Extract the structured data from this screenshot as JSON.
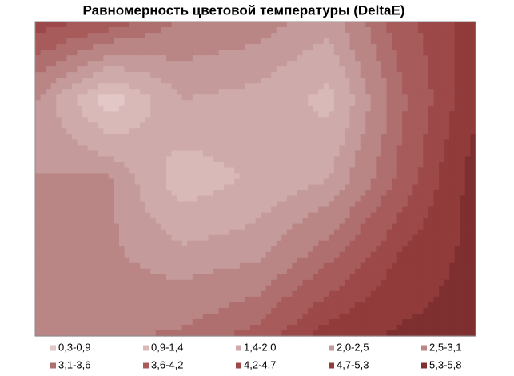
{
  "chart_data": {
    "type": "contour",
    "title": "Равномерность цветовой температуры (DeltaE)",
    "z": [
      [
        4.5,
        4.0,
        3.0,
        2.8,
        2.2,
        4.0,
        5.0
      ],
      [
        2.5,
        0.5,
        2.0,
        1.8,
        1.2,
        3.5,
        5.2
      ],
      [
        2.5,
        2.6,
        1.0,
        1.5,
        2.0,
        3.8,
        5.6
      ],
      [
        2.7,
        2.6,
        2.2,
        2.4,
        3.5,
        4.8,
        5.5
      ],
      [
        2.8,
        3.0,
        3.2,
        3.8,
        5.0,
        5.4,
        5.6
      ]
    ],
    "bands": [
      {
        "label": "0,3-0,9",
        "from": 0.3,
        "to": 0.9,
        "color": "#e3c6c6"
      },
      {
        "label": "0,9-1,4",
        "from": 0.9,
        "to": 1.4,
        "color": "#d9b8b8"
      },
      {
        "label": "1,4-2,0",
        "from": 1.4,
        "to": 2.0,
        "color": "#cfaaaa"
      },
      {
        "label": "2,0-2,5",
        "from": 2.0,
        "to": 2.5,
        "color": "#c59a9a"
      },
      {
        "label": "2,5-3,1",
        "from": 2.5,
        "to": 3.1,
        "color": "#ba8585"
      },
      {
        "label": "3,1-3,6",
        "from": 3.1,
        "to": 3.6,
        "color": "#b06f6f"
      },
      {
        "label": "3,6-4,2",
        "from": 3.6,
        "to": 4.2,
        "color": "#a75b5b"
      },
      {
        "label": "4,2-4,7",
        "from": 4.2,
        "to": 4.7,
        "color": "#9d4949"
      },
      {
        "label": "4,7-5,3",
        "from": 4.7,
        "to": 5.3,
        "color": "#913b3b"
      },
      {
        "label": "5,3-5,8",
        "from": 5.3,
        "to": 5.8,
        "color": "#7e2f2f"
      }
    ]
  }
}
